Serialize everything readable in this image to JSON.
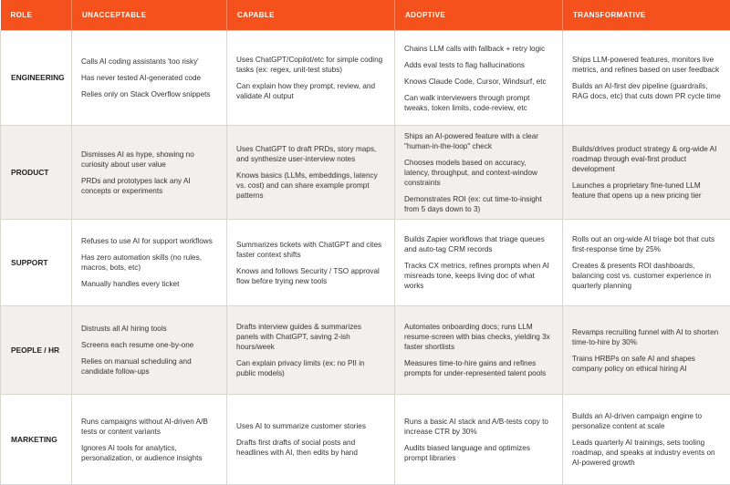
{
  "colors": {
    "header_bg": "#f5511c",
    "header_text": "#ffffff",
    "alt_row_bg": "#f2f0ec",
    "border": "#d9d5cf"
  },
  "headers": [
    "ROLE",
    "UNACCEPTABLE",
    "CAPABLE",
    "ADOPTIVE",
    "TRANSFORMATIVE"
  ],
  "rows": [
    {
      "role": "ENGINEERING",
      "cells": [
        [
          "Calls AI coding assistants 'too risky'",
          "Has never tested AI-generated code",
          "Relies only on Stack Overflow snippets"
        ],
        [
          "Uses ChatGPT/Copilot/etc for simple coding tasks (ex: regex, unit-test stubs)",
          "Can explain how they prompt, review, and validate AI output"
        ],
        [
          "Chains LLM calls with fallback + retry logic",
          "Adds eval tests to flag hallucinations",
          "Knows Claude Code, Cursor, Windsurf, etc",
          "Can walk interviewers through prompt tweaks, token limits, code-review, etc"
        ],
        [
          "Ships LLM-powered features, monitors live metrics, and refines based on user feedback",
          "Builds an AI-first dev pipeline (guardrails, RAG docs, etc) that cuts down PR cycle time"
        ]
      ]
    },
    {
      "role": "PRODUCT",
      "cells": [
        [
          "Dismisses AI as hype, showing no curiosity about user value",
          "PRDs and prototypes lack any AI concepts or experiments"
        ],
        [
          "Uses ChatGPT to draft PRDs, story maps, and synthesize user-interview notes",
          "Knows basics (LLMs, embeddings, latency vs. cost) and can share example prompt patterns"
        ],
        [
          "Ships an AI-powered feature with a clear \"human-in-the-loop\" check",
          "Chooses models based on accuracy, latency, throughput, and context-window constraints",
          "Demonstrates ROI (ex: cut time-to-insight from 5 days down to 3)"
        ],
        [
          "Builds/drives product strategy & org-wide AI roadmap through eval-first product development",
          "Launches a proprietary fine-tuned LLM feature that opens up a new pricing tier"
        ]
      ]
    },
    {
      "role": "SUPPORT",
      "cells": [
        [
          "Refuses to use AI for support workflows",
          "Has zero automation skills (no rules, macros, bots, etc)",
          "Manually handles every ticket"
        ],
        [
          "Summarizes tickets with ChatGPT and cites faster context shifts",
          "Knows and follows Security / TSO approval flow before trying new tools"
        ],
        [
          "Builds Zapier workflows that triage queues and auto-tag CRM records",
          "Tracks CX metrics, refines prompts when AI misreads tone, keeps living doc of what works"
        ],
        [
          "Rolls out an org-wide AI triage bot that cuts first-response time by 25%",
          "Creates & presents ROI dashboards, balancing cost vs. customer experience in quarterly planning"
        ]
      ]
    },
    {
      "role": "PEOPLE / HR",
      "cells": [
        [
          "Distrusts all AI hiring tools",
          "Screens each resume one-by-one",
          "Relies on manual scheduling and candidate follow-ups"
        ],
        [
          "Drafts interview guides & summarizes panels with ChatGPT, saving 2-ish hours/week",
          "Can explain privacy limits (ex: no PII in public models)"
        ],
        [
          "Automates onboarding docs; runs LLM resume-screen with bias checks, yielding 3x faster shortlists",
          "Measures time-to-hire gains and refines prompts for under-represented talent pools"
        ],
        [
          "Revamps recruiting funnel with AI to shorten time-to-hire by 30%",
          "Trains HRBPs on safe AI and shapes company policy on ethical hiring AI"
        ]
      ]
    },
    {
      "role": "MARKETING",
      "cells": [
        [
          "Runs campaigns without AI-driven A/B tests or content variants",
          "Ignores AI tools for analytics, personalization, or audience insights"
        ],
        [
          "Uses AI to summarize customer stories",
          "Drafts first drafts of social posts and headlines with AI, then edits by hand"
        ],
        [
          "Runs a basic AI stack and A/B-tests copy to increase CTR by 30%",
          "Audits biased language and optimizes prompt libraries"
        ],
        [
          "Builds an AI-driven campaign engine to personalize content at scale",
          "Leads quarterly AI trainings, sets tooling roadmap, and speaks at industry events on AI-powered growth"
        ]
      ]
    }
  ]
}
